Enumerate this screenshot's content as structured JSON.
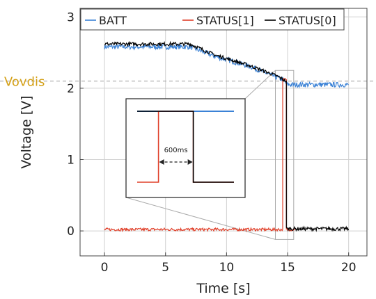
{
  "chart_data": {
    "type": "line",
    "xlabel": "Time [s]",
    "ylabel": "Voltage [V]",
    "xlim": [
      -2,
      21.5
    ],
    "ylim": [
      -0.35,
      3.12
    ],
    "x_ticks": [
      "0",
      "5",
      "10",
      "15",
      "20"
    ],
    "y_ticks": [
      "0",
      "1",
      "2",
      "3"
    ],
    "grid": true,
    "legend_position": "top",
    "reference_line": {
      "label": "Vovdis",
      "value": 2.1,
      "color": "#d4a017",
      "style": "dashed"
    },
    "series": [
      {
        "name": "BATT",
        "color": "#3b82d6",
        "noise": 0.035,
        "points": [
          [
            0,
            2.58
          ],
          [
            7,
            2.58
          ],
          [
            9,
            2.45
          ],
          [
            12,
            2.3
          ],
          [
            14,
            2.16
          ],
          [
            14.6,
            2.12
          ],
          [
            15,
            2.05
          ],
          [
            16,
            2.05
          ],
          [
            20,
            2.05
          ]
        ]
      },
      {
        "name": "STATUS[1]",
        "color": "#e0402a",
        "noise": 0.02,
        "points": [
          [
            0,
            0.02
          ],
          [
            14.6,
            0.02
          ],
          [
            14.6,
            2.12
          ],
          [
            14.9,
            2.12
          ],
          [
            14.9,
            0.02
          ],
          [
            15.6,
            0.02
          ]
        ]
      },
      {
        "name": "STATUS[0]",
        "color": "#000000",
        "noise": 0.025,
        "points": [
          [
            0,
            2.62
          ],
          [
            7,
            2.62
          ],
          [
            9,
            2.47
          ],
          [
            12,
            2.31
          ],
          [
            14,
            2.18
          ],
          [
            14.9,
            2.1
          ],
          [
            14.9,
            0.03
          ],
          [
            20,
            0.03
          ]
        ]
      }
    ],
    "inset": {
      "annotation": "600ms",
      "source_window": {
        "x": [
          14.0,
          15.5
        ],
        "y": [
          -0.12,
          2.25
        ]
      },
      "series": [
        {
          "name": "BATT",
          "color": "#3b82d6",
          "points": [
            [
              0.0,
              2.16
            ],
            [
              1.0,
              2.16
            ]
          ]
        },
        {
          "name": "STATUS[1]",
          "color": "#e0402a",
          "points": [
            [
              0.0,
              0.05
            ],
            [
              0.22,
              0.05
            ],
            [
              0.22,
              2.16
            ],
            [
              0.58,
              2.16
            ],
            [
              0.58,
              0.05
            ],
            [
              1.0,
              0.05
            ]
          ]
        },
        {
          "name": "STATUS[0]",
          "color": "#000000",
          "points": [
            [
              0.0,
              2.16
            ],
            [
              0.58,
              2.16
            ],
            [
              0.58,
              0.05
            ],
            [
              1.0,
              0.05
            ]
          ]
        }
      ]
    }
  }
}
